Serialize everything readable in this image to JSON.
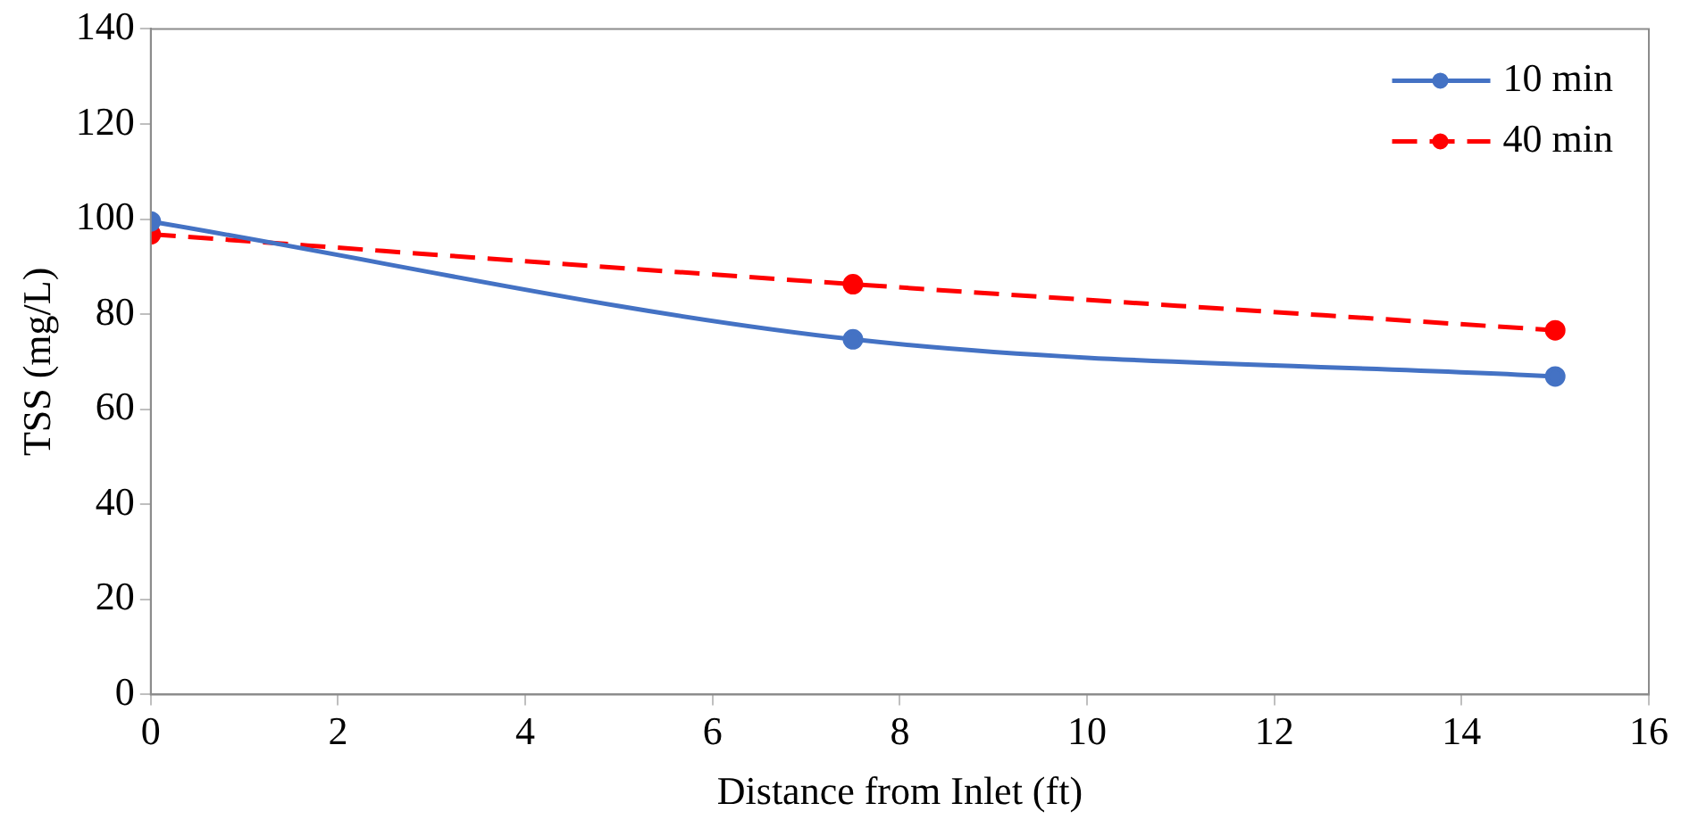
{
  "chart_data": {
    "type": "line",
    "xlabel": "Distance from Inlet (ft)",
    "ylabel": "TSS (mg/L)",
    "x": [
      0,
      7.5,
      15
    ],
    "series": [
      {
        "name": "10 min",
        "color": "#4472c4",
        "values": [
          99.5,
          74.7,
          66.9
        ],
        "line_style": "solid"
      },
      {
        "name": "40 min",
        "color": "#ff0000",
        "values": [
          96.8,
          86.3,
          76.6
        ],
        "line_style": "dashed"
      }
    ],
    "xlim": [
      0,
      16
    ],
    "xticks": [
      0,
      2,
      4,
      6,
      8,
      10,
      12,
      14,
      16
    ],
    "ylim": [
      0,
      140
    ],
    "yticks": [
      0,
      20,
      40,
      60,
      80,
      100,
      120,
      140
    ],
    "grid": false,
    "legend": "top right",
    "marker": "circle"
  }
}
